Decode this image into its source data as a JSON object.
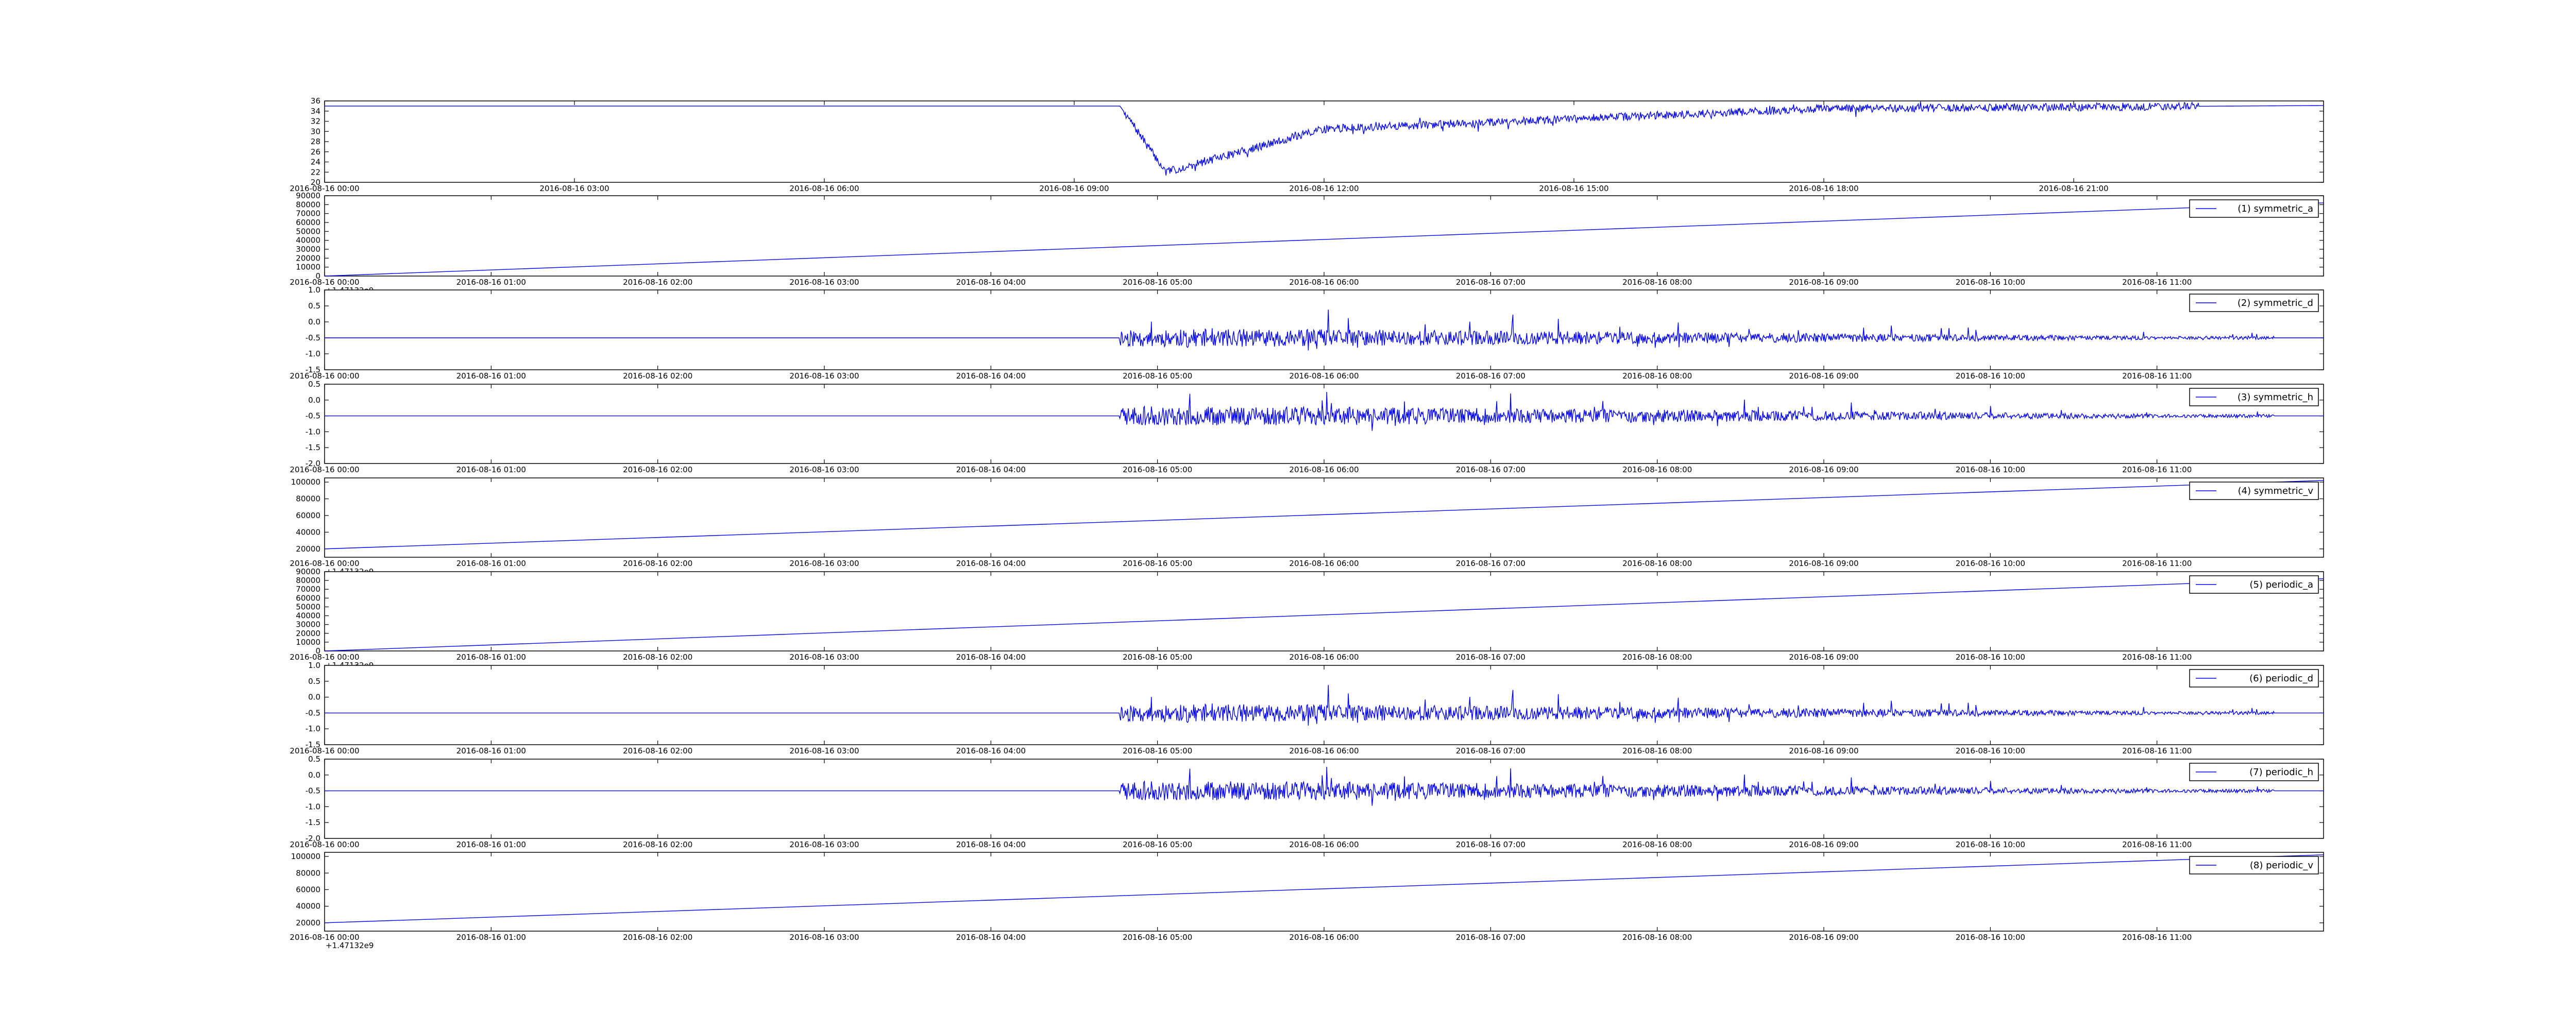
{
  "chart_data": [
    {
      "type": "line",
      "series": [
        {
          "name": "",
          "color": "#0000ff",
          "shape": "temperature_dip"
        }
      ],
      "x_ticks": [
        "2016-08-16 00:00",
        "2016-08-16 03:00",
        "2016-08-16 06:00",
        "2016-08-16 09:00",
        "2016-08-16 12:00",
        "2016-08-16 15:00",
        "2016-08-16 18:00",
        "2016-08-16 21:00"
      ],
      "xlim": [
        0,
        24
      ],
      "y_ticks": [
        "20",
        "22",
        "24",
        "26",
        "28",
        "30",
        "32",
        "34",
        "36"
      ],
      "ylim": [
        20,
        36
      ],
      "x_offset_text": "",
      "grid": false,
      "legend": null
    },
    {
      "type": "line",
      "series": [
        {
          "name": "(1) symmetric_a",
          "color": "#0000ff",
          "shape": "linear",
          "start": 0,
          "end": 82000
        }
      ],
      "x_ticks": [
        "2016-08-16 00:00",
        "2016-08-16 01:00",
        "2016-08-16 02:00",
        "2016-08-16 03:00",
        "2016-08-16 04:00",
        "2016-08-16 05:00",
        "2016-08-16 06:00",
        "2016-08-16 07:00",
        "2016-08-16 08:00",
        "2016-08-16 09:00",
        "2016-08-16 10:00",
        "2016-08-16 11:00"
      ],
      "xlim": [
        0,
        12
      ],
      "y_ticks": [
        "0",
        "10000",
        "20000",
        "30000",
        "40000",
        "50000",
        "60000",
        "70000",
        "80000",
        "90000"
      ],
      "ylim": [
        0,
        90000
      ],
      "x_offset_text": "+1.47132e9",
      "grid": false,
      "legend": "upper right"
    },
    {
      "type": "line",
      "series": [
        {
          "name": "(2) symmetric_d",
          "color": "#0000ff",
          "shape": "noise",
          "baseline": -0.5,
          "seed": 11,
          "amp": 0.55
        }
      ],
      "x_ticks": [
        "2016-08-16 00:00",
        "2016-08-16 01:00",
        "2016-08-16 02:00",
        "2016-08-16 03:00",
        "2016-08-16 04:00",
        "2016-08-16 05:00",
        "2016-08-16 06:00",
        "2016-08-16 07:00",
        "2016-08-16 08:00",
        "2016-08-16 09:00",
        "2016-08-16 10:00",
        "2016-08-16 11:00"
      ],
      "xlim": [
        0,
        12
      ],
      "y_ticks": [
        "-1.5",
        "-1.0",
        "-0.5",
        "0.0",
        "0.5",
        "1.0"
      ],
      "ylim": [
        -1.5,
        1.0
      ],
      "x_offset_text": "",
      "grid": false,
      "legend": "upper right"
    },
    {
      "type": "line",
      "series": [
        {
          "name": "(3) symmetric_h",
          "color": "#0000ff",
          "shape": "noise",
          "baseline": -0.5,
          "seed": 23,
          "amp": 0.6
        }
      ],
      "x_ticks": [
        "2016-08-16 00:00",
        "2016-08-16 01:00",
        "2016-08-16 02:00",
        "2016-08-16 03:00",
        "2016-08-16 04:00",
        "2016-08-16 05:00",
        "2016-08-16 06:00",
        "2016-08-16 07:00",
        "2016-08-16 08:00",
        "2016-08-16 09:00",
        "2016-08-16 10:00",
        "2016-08-16 11:00"
      ],
      "xlim": [
        0,
        12
      ],
      "y_ticks": [
        "-2.0",
        "-1.5",
        "-1.0",
        "-0.5",
        "0.0",
        "0.5"
      ],
      "ylim": [
        -2.0,
        0.5
      ],
      "x_offset_text": "",
      "grid": false,
      "legend": "upper right"
    },
    {
      "type": "line",
      "series": [
        {
          "name": "(4) symmetric_v",
          "color": "#0000ff",
          "shape": "linear",
          "start": 20000,
          "end": 102000
        }
      ],
      "x_ticks": [
        "2016-08-16 00:00",
        "2016-08-16 01:00",
        "2016-08-16 02:00",
        "2016-08-16 03:00",
        "2016-08-16 04:00",
        "2016-08-16 05:00",
        "2016-08-16 06:00",
        "2016-08-16 07:00",
        "2016-08-16 08:00",
        "2016-08-16 09:00",
        "2016-08-16 10:00",
        "2016-08-16 11:00"
      ],
      "xlim": [
        0,
        12
      ],
      "y_ticks": [
        "20000",
        "40000",
        "60000",
        "80000",
        "100000"
      ],
      "ylim": [
        10000,
        105000
      ],
      "x_offset_text": "+1.47132e9",
      "grid": false,
      "legend": "upper right"
    },
    {
      "type": "line",
      "series": [
        {
          "name": "(5) periodic_a",
          "color": "#0000ff",
          "shape": "linear",
          "start": 0,
          "end": 82000
        }
      ],
      "x_ticks": [
        "2016-08-16 00:00",
        "2016-08-16 01:00",
        "2016-08-16 02:00",
        "2016-08-16 03:00",
        "2016-08-16 04:00",
        "2016-08-16 05:00",
        "2016-08-16 06:00",
        "2016-08-16 07:00",
        "2016-08-16 08:00",
        "2016-08-16 09:00",
        "2016-08-16 10:00",
        "2016-08-16 11:00"
      ],
      "xlim": [
        0,
        12
      ],
      "y_ticks": [
        "0",
        "10000",
        "20000",
        "30000",
        "40000",
        "50000",
        "60000",
        "70000",
        "80000",
        "90000"
      ],
      "ylim": [
        0,
        90000
      ],
      "x_offset_text": "+1.47132e9",
      "grid": false,
      "legend": "upper right"
    },
    {
      "type": "line",
      "series": [
        {
          "name": "(6) periodic_d",
          "color": "#0000ff",
          "shape": "noise",
          "baseline": -0.5,
          "seed": 11,
          "amp": 0.55
        }
      ],
      "x_ticks": [
        "2016-08-16 00:00",
        "2016-08-16 01:00",
        "2016-08-16 02:00",
        "2016-08-16 03:00",
        "2016-08-16 04:00",
        "2016-08-16 05:00",
        "2016-08-16 06:00",
        "2016-08-16 07:00",
        "2016-08-16 08:00",
        "2016-08-16 09:00",
        "2016-08-16 10:00",
        "2016-08-16 11:00"
      ],
      "xlim": [
        0,
        12
      ],
      "y_ticks": [
        "-1.5",
        "-1.0",
        "-0.5",
        "0.0",
        "0.5",
        "1.0"
      ],
      "ylim": [
        -1.5,
        1.0
      ],
      "x_offset_text": "",
      "grid": false,
      "legend": "upper right"
    },
    {
      "type": "line",
      "series": [
        {
          "name": "(7) periodic_h",
          "color": "#0000ff",
          "shape": "noise",
          "baseline": -0.5,
          "seed": 23,
          "amp": 0.6
        }
      ],
      "x_ticks": [
        "2016-08-16 00:00",
        "2016-08-16 01:00",
        "2016-08-16 02:00",
        "2016-08-16 03:00",
        "2016-08-16 04:00",
        "2016-08-16 05:00",
        "2016-08-16 06:00",
        "2016-08-16 07:00",
        "2016-08-16 08:00",
        "2016-08-16 09:00",
        "2016-08-16 10:00",
        "2016-08-16 11:00"
      ],
      "xlim": [
        0,
        12
      ],
      "y_ticks": [
        "-2.0",
        "-1.5",
        "-1.0",
        "-0.5",
        "0.0",
        "0.5"
      ],
      "ylim": [
        -2.0,
        0.5
      ],
      "x_offset_text": "",
      "grid": false,
      "legend": "upper right"
    },
    {
      "type": "line",
      "series": [
        {
          "name": "(8) periodic_v",
          "color": "#0000ff",
          "shape": "linear",
          "start": 20000,
          "end": 102000
        }
      ],
      "x_ticks": [
        "2016-08-16 00:00",
        "2016-08-16 01:00",
        "2016-08-16 02:00",
        "2016-08-16 03:00",
        "2016-08-16 04:00",
        "2016-08-16 05:00",
        "2016-08-16 06:00",
        "2016-08-16 07:00",
        "2016-08-16 08:00",
        "2016-08-16 09:00",
        "2016-08-16 10:00",
        "2016-08-16 11:00"
      ],
      "xlim": [
        0,
        12
      ],
      "y_ticks": [
        "20000",
        "40000",
        "60000",
        "80000",
        "100000"
      ],
      "ylim": [
        10000,
        105000
      ],
      "x_offset_text": "+1.47132e9",
      "grid": false,
      "legend": "upper right"
    }
  ]
}
